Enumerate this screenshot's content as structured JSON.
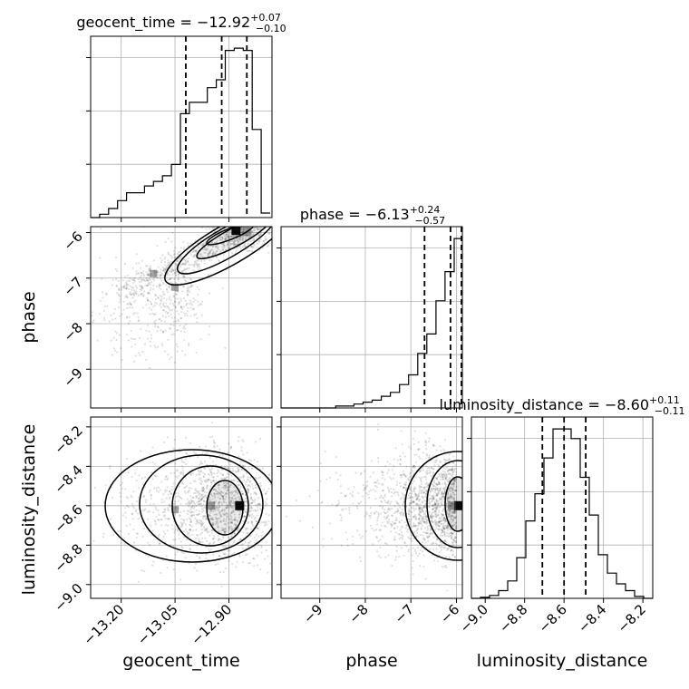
{
  "chart_data": {
    "type": "corner",
    "parameters": [
      "geocent_time",
      "phase",
      "luminosity_distance"
    ],
    "titles": [
      {
        "param": "geocent_time",
        "prefix": "geocent_time = ",
        "median": "−12.92",
        "plus": "+0.07",
        "minus": "−0.10"
      },
      {
        "param": "phase",
        "prefix": "phase = ",
        "median": "−6.13",
        "plus": "+0.24",
        "minus": "−0.57"
      },
      {
        "param": "luminosity_distance",
        "prefix": "luminosity_distance = ",
        "median": "−8.60",
        "plus": "+0.11",
        "minus": "−0.11"
      }
    ],
    "ranges": {
      "geocent_time": [
        -13.285,
        -12.78
      ],
      "phase": [
        -9.85,
        -5.87
      ],
      "luminosity_distance": [
        -9.07,
        -8.15
      ]
    },
    "x_tick_labels": {
      "geocent_time": [
        "−13.20",
        "−13.05",
        "−12.90"
      ],
      "phase": [
        "−9",
        "−8",
        "−7",
        "−6"
      ],
      "luminosity_distance": [
        "−9.0",
        "−8.8",
        "−8.6",
        "−8.4",
        "−8.2"
      ]
    },
    "x_tick_values": {
      "geocent_time": [
        -13.2,
        -13.05,
        -12.9
      ],
      "phase": [
        -9,
        -8,
        -7,
        -6
      ],
      "luminosity_distance": [
        -9.0,
        -8.8,
        -8.6,
        -8.4,
        -8.2
      ]
    },
    "y_tick_labels": {
      "phase": [
        "−6",
        "−7",
        "−8",
        "−9"
      ],
      "luminosity_distance": [
        "−8.2",
        "−8.4",
        "−8.6",
        "−8.8",
        "−9.0"
      ]
    },
    "y_tick_values": {
      "phase": [
        -6,
        -7,
        -8,
        -9
      ],
      "luminosity_distance": [
        -8.2,
        -8.4,
        -8.6,
        -8.8,
        -9.0
      ]
    },
    "quantiles": {
      "geocent_time": [
        -13.02,
        -12.92,
        -12.85
      ],
      "phase": [
        -6.7,
        -6.13,
        -5.89
      ],
      "luminosity_distance": [
        -8.71,
        -8.6,
        -8.49
      ]
    },
    "histograms": {
      "geocent_time": {
        "edges": [
          -13.285,
          -13.26,
          -13.235,
          -13.21,
          -13.185,
          -13.16,
          -13.135,
          -13.11,
          -13.085,
          -13.06,
          -13.035,
          -13.01,
          -12.985,
          -12.96,
          -12.935,
          -12.91,
          -12.885,
          -12.86,
          -12.835,
          -12.81,
          -12.785
        ],
        "counts": [
          0,
          3,
          8,
          15,
          22,
          22,
          28,
          32,
          37,
          47,
          92,
          102,
          102,
          115,
          122,
          148,
          150,
          148,
          78,
          4
        ]
      },
      "phase": {
        "edges": [
          -9.85,
          -9.65,
          -9.45,
          -9.25,
          -9.05,
          -8.85,
          -8.65,
          -8.45,
          -8.25,
          -8.05,
          -7.85,
          -7.65,
          -7.45,
          -7.25,
          -7.05,
          -6.85,
          -6.65,
          -6.45,
          -6.25,
          -6.05,
          -5.87
        ],
        "counts": [
          0,
          0,
          0,
          0,
          0,
          0,
          1,
          1,
          2,
          3,
          4,
          6,
          8,
          12,
          17,
          28,
          38,
          55,
          70,
          87
        ]
      },
      "luminosity_distance": {
        "edges": [
          -9.07,
          -9.024,
          -8.978,
          -8.932,
          -8.886,
          -8.84,
          -8.794,
          -8.748,
          -8.702,
          -8.656,
          -8.61,
          -8.564,
          -8.518,
          -8.472,
          -8.426,
          -8.38,
          -8.334,
          -8.288,
          -8.242,
          -8.196,
          -8.15
        ],
        "counts": [
          0,
          1,
          3,
          8,
          18,
          42,
          80,
          108,
          145,
          175,
          175,
          165,
          125,
          86,
          45,
          26,
          15,
          8,
          2,
          0
        ]
      }
    },
    "density_peaks": {
      "phase_vs_geocent_time": [
        [
          -12.88,
          -5.95
        ],
        [
          -12.85,
          -5.98
        ],
        [
          -13.11,
          -6.9
        ],
        [
          -13.05,
          -7.2
        ]
      ],
      "luminosity_distance_vs_geocent_time": [
        [
          -12.87,
          -8.6
        ],
        [
          -12.95,
          -8.6
        ],
        [
          -13.05,
          -8.62
        ]
      ],
      "luminosity_distance_vs_phase": [
        [
          -5.95,
          -8.6
        ],
        [
          -6.1,
          -8.6
        ]
      ]
    }
  }
}
